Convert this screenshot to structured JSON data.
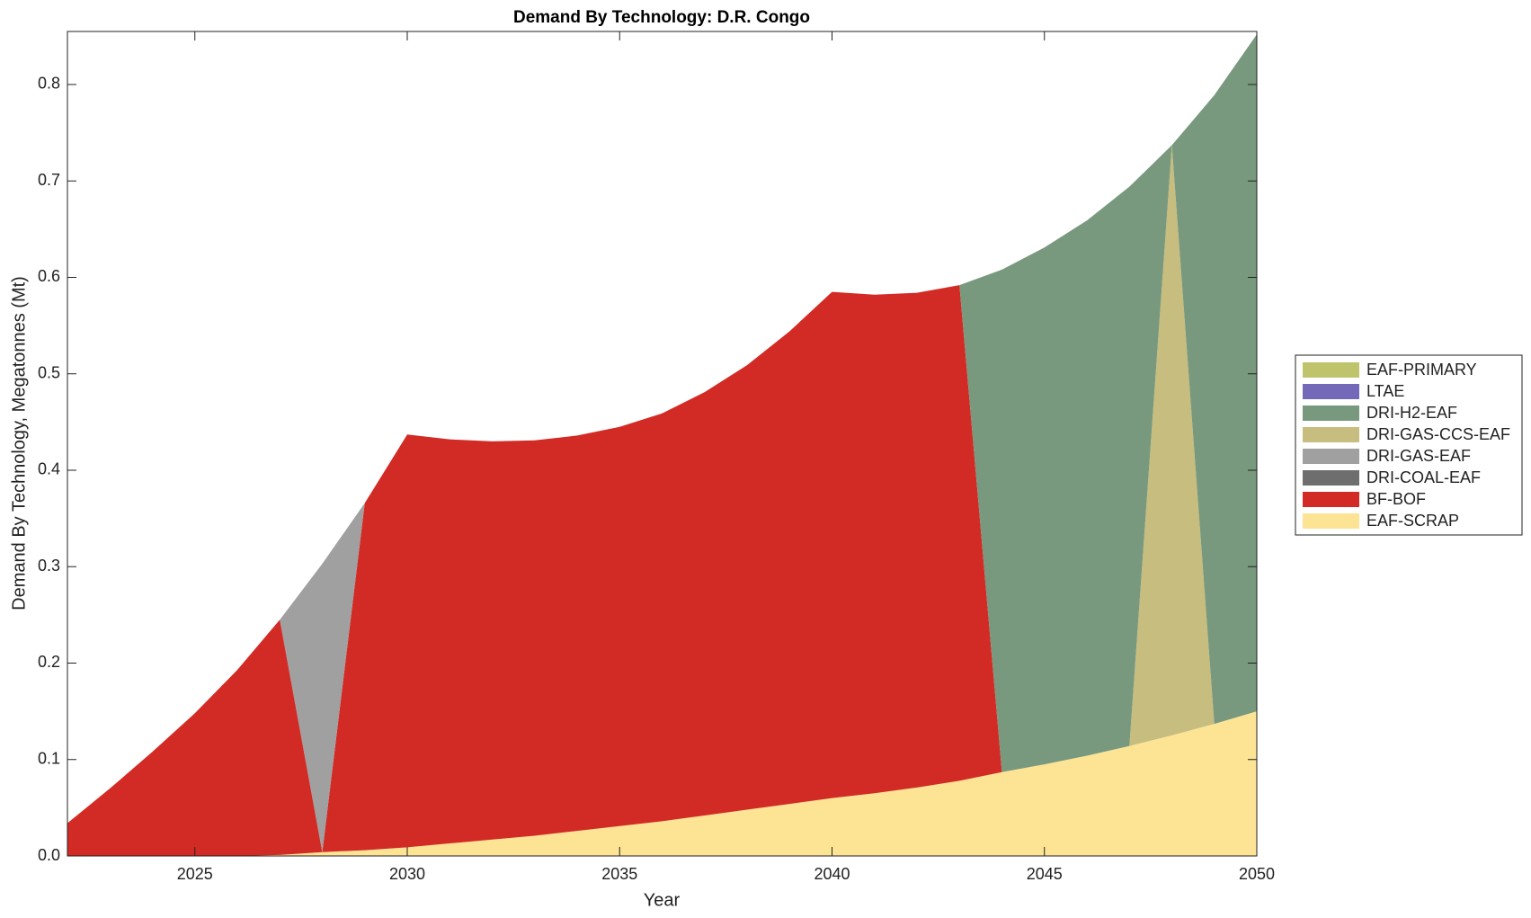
{
  "chart_data": {
    "type": "stacked_area",
    "title": "Demand By Technology: D.R. Congo",
    "xlabel": "Year",
    "ylabel": "Demand By Technology, Megatonnes (Mt)",
    "x": [
      2022,
      2023,
      2024,
      2025,
      2026,
      2027,
      2028,
      2029,
      2030,
      2031,
      2032,
      2033,
      2034,
      2035,
      2036,
      2037,
      2038,
      2039,
      2040,
      2041,
      2042,
      2043,
      2044,
      2045,
      2046,
      2047,
      2048,
      2049,
      2050
    ],
    "xlim": [
      2022,
      2050
    ],
    "xticks": [
      2025,
      2030,
      2035,
      2040,
      2045,
      2050
    ],
    "ylim": [
      0,
      0.855
    ],
    "yticks": [
      {
        "value": 0,
        "label": "0.0"
      },
      0.1,
      0.2,
      0.3,
      0.4,
      0.5,
      0.6,
      0.7,
      0.8
    ],
    "legend": "right",
    "series": [
      {
        "name": "EAF-PRIMARY",
        "color": "#bfc46c",
        "values": [
          0,
          0,
          0,
          0,
          0,
          0,
          0,
          0,
          0,
          0,
          0,
          0,
          0,
          0,
          0,
          0,
          0,
          0,
          0,
          0,
          0,
          0,
          0,
          0,
          0,
          0,
          0,
          0,
          0
        ]
      },
      {
        "name": "LTAE",
        "color": "#7468b8",
        "values": [
          0,
          0,
          0,
          0,
          0,
          0,
          0,
          0,
          0,
          0,
          0,
          0,
          0,
          0,
          0,
          0,
          0,
          0,
          0,
          0,
          0,
          0,
          0,
          0,
          0,
          0,
          0,
          0,
          0
        ]
      },
      {
        "name": "DRI-H2-EAF",
        "color": "#78997e",
        "values": [
          0,
          0,
          0,
          0,
          0,
          0,
          0,
          0,
          0,
          0,
          0,
          0,
          0,
          0,
          0,
          0,
          0,
          0,
          0,
          0,
          0,
          0,
          0.521,
          0.536,
          0.555,
          0.58,
          0,
          0.652,
          0.702
        ]
      },
      {
        "name": "DRI-GAS-CCS-EAF",
        "color": "#c7bd7e",
        "values": [
          0,
          0,
          0,
          0,
          0,
          0,
          0,
          0,
          0,
          0,
          0,
          0,
          0,
          0,
          0,
          0,
          0,
          0,
          0,
          0,
          0,
          0,
          0,
          0,
          0,
          0,
          0.612,
          0,
          0
        ]
      },
      {
        "name": "DRI-GAS-EAF",
        "color": "#a0a0a0",
        "values": [
          0,
          0,
          0,
          0,
          0,
          0,
          0.299,
          0,
          0,
          0,
          0,
          0,
          0,
          0,
          0,
          0,
          0,
          0,
          0,
          0,
          0,
          0,
          0,
          0,
          0,
          0,
          0,
          0,
          0
        ]
      },
      {
        "name": "DRI-COAL-EAF",
        "color": "#6e6e6e",
        "values": [
          0,
          0,
          0,
          0,
          0,
          0,
          0,
          0,
          0,
          0,
          0,
          0,
          0,
          0,
          0,
          0,
          0,
          0,
          0,
          0,
          0,
          0,
          0,
          0,
          0,
          0,
          0,
          0,
          0
        ]
      },
      {
        "name": "BF-BOF",
        "color": "#d22b25",
        "values": [
          0.034,
          0.07,
          0.108,
          0.148,
          0.193,
          0.244,
          0,
          0.36,
          0.428,
          0.419,
          0.413,
          0.41,
          0.41,
          0.414,
          0.423,
          0.439,
          0.461,
          0.49,
          0.525,
          0.517,
          0.513,
          0.514,
          0,
          0,
          0,
          0,
          0,
          0,
          0
        ]
      },
      {
        "name": "EAF-SCRAP",
        "color": "#fde494",
        "values": [
          0,
          0,
          0,
          0,
          0,
          0.001,
          0.004,
          0.006,
          0.009,
          0.013,
          0.017,
          0.021,
          0.026,
          0.031,
          0.036,
          0.042,
          0.048,
          0.054,
          0.06,
          0.065,
          0.071,
          0.078,
          0.087,
          0.095,
          0.104,
          0.114,
          0.125,
          0.137,
          0.15
        ]
      }
    ]
  }
}
